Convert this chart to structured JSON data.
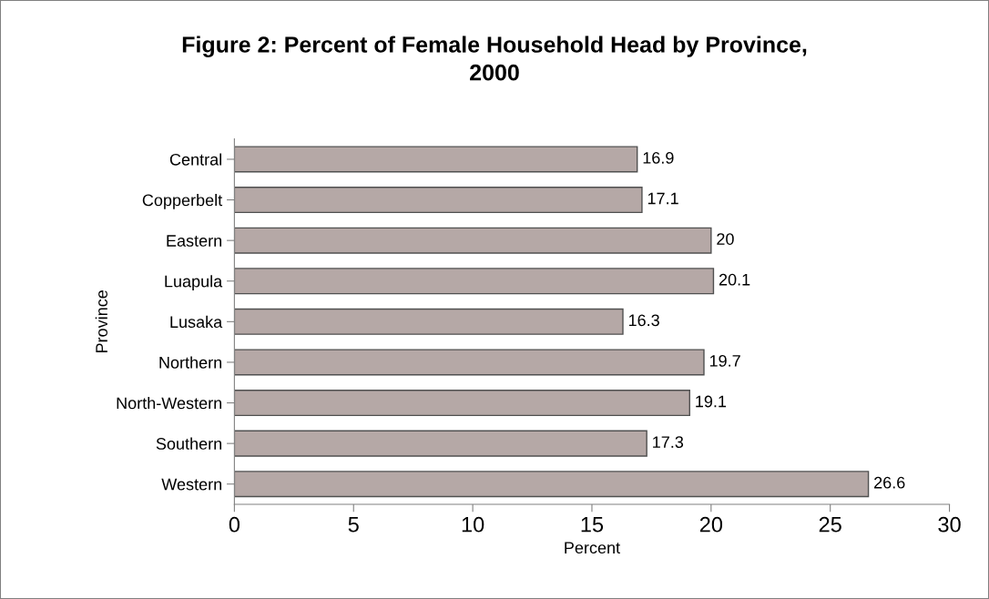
{
  "chart_data": {
    "type": "bar",
    "orientation": "horizontal",
    "title": "Figure 2: Percent of Female Household Head by Province,\n2000",
    "xlabel": "Percent",
    "ylabel": "Province",
    "categories": [
      "Central",
      "Copperbelt",
      "Eastern",
      "Luapula",
      "Lusaka",
      "Northern",
      "North-Western",
      "Southern",
      "Western"
    ],
    "values": [
      16.9,
      17.1,
      20,
      20.1,
      16.3,
      19.7,
      19.1,
      17.3,
      26.6
    ],
    "color": "#b5a8a6",
    "xlim": [
      0,
      30
    ],
    "xticks": [
      0,
      5,
      10,
      15,
      20,
      25,
      30
    ],
    "data_labels": true,
    "grid": false,
    "legend": false
  }
}
